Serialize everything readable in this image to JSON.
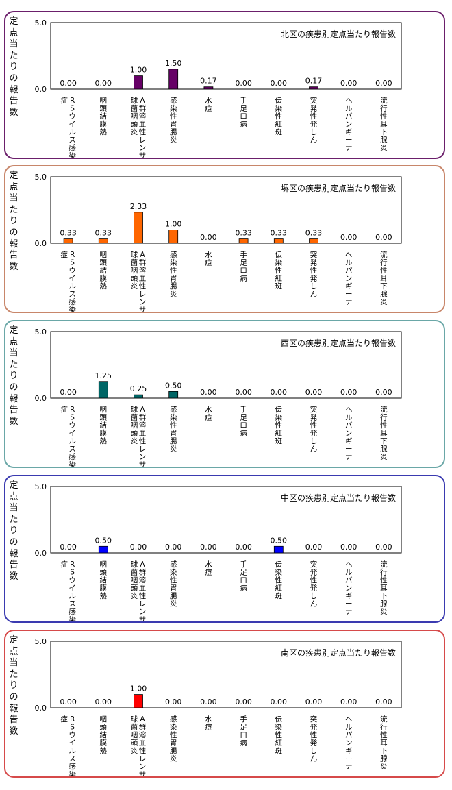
{
  "colors": {
    "panel_borders": [
      "#6b1f6b",
      "#c8866a",
      "#6aa7a7",
      "#3a3ab0",
      "#d64a4a"
    ]
  },
  "chart_data": [
    {
      "type": "bar",
      "title": "北区の疾患別定点当たり報告数",
      "ylabel": "定点当たりの報告数",
      "ylim": [
        0,
        5
      ],
      "yticks": [
        "5.0",
        "0.0"
      ],
      "categories": [
        "RSウイルス感染症",
        "咽頭結膜熱",
        "A群溶血性レンサ球菌咽頭炎",
        "感染性胃腸炎",
        "水痘",
        "手足口病",
        "伝染性紅斑",
        "突発性発しん",
        "ヘルパンギーナ",
        "流行性耳下腺炎"
      ],
      "series": [
        {
          "values": [
            0.0,
            0.0,
            1.0,
            1.5,
            0.17,
            0.0,
            0.0,
            0.17,
            0.0,
            0.0
          ]
        }
      ],
      "value_labels": [
        "0.00",
        "0.00",
        "1.00",
        "1.50",
        "0.17",
        "0.00",
        "0.00",
        "0.17",
        "0.00",
        "0.00"
      ],
      "bar_color": "#660066",
      "grid": false
    },
    {
      "type": "bar",
      "title": "堺区の疾患別定点当たり報告数",
      "ylabel": "定点当たりの報告数",
      "ylim": [
        0,
        5
      ],
      "yticks": [
        "5.0",
        "0.0"
      ],
      "categories": [
        "RSウイルス感染症",
        "咽頭結膜熱",
        "A群溶血性レンサ球菌咽頭炎",
        "感染性胃腸炎",
        "水痘",
        "手足口病",
        "伝染性紅斑",
        "突発性発しん",
        "ヘルパンギーナ",
        "流行性耳下腺炎"
      ],
      "series": [
        {
          "values": [
            0.33,
            0.33,
            2.33,
            1.0,
            0.0,
            0.33,
            0.33,
            0.33,
            0.0,
            0.0
          ]
        }
      ],
      "value_labels": [
        "0.33",
        "0.33",
        "2.33",
        "1.00",
        "0.00",
        "0.33",
        "0.33",
        "0.33",
        "0.00",
        "0.00"
      ],
      "bar_color": "#ff6600",
      "grid": false
    },
    {
      "type": "bar",
      "title": "西区の疾患別定点当たり報告数",
      "ylabel": "定点当たりの報告数",
      "ylim": [
        0,
        5
      ],
      "yticks": [
        "5.0",
        "0.0"
      ],
      "categories": [
        "RSウイルス感染症",
        "咽頭結膜熱",
        "A群溶血性レンサ球菌咽頭炎",
        "感染性胃腸炎",
        "水痘",
        "手足口病",
        "伝染性紅斑",
        "突発性発しん",
        "ヘルパンギーナ",
        "流行性耳下腺炎"
      ],
      "series": [
        {
          "values": [
            0.0,
            1.25,
            0.25,
            0.5,
            0.0,
            0.0,
            0.0,
            0.0,
            0.0,
            0.0
          ]
        }
      ],
      "value_labels": [
        "0.00",
        "1.25",
        "0.25",
        "0.50",
        "0.00",
        "0.00",
        "0.00",
        "0.00",
        "0.00",
        "0.00"
      ],
      "bar_color": "#006666",
      "grid": false
    },
    {
      "type": "bar",
      "title": "中区の疾患別定点当たり報告数",
      "ylabel": "定点当たりの報告数",
      "ylim": [
        0,
        5
      ],
      "yticks": [
        "5.0",
        "0.0"
      ],
      "categories": [
        "RSウイルス感染症",
        "咽頭結膜熱",
        "A群溶血性レンサ球菌咽頭炎",
        "感染性胃腸炎",
        "水痘",
        "手足口病",
        "伝染性紅斑",
        "突発性発しん",
        "ヘルパンギーナ",
        "流行性耳下腺炎"
      ],
      "series": [
        {
          "values": [
            0.0,
            0.5,
            0.0,
            0.0,
            0.0,
            0.0,
            0.5,
            0.0,
            0.0,
            0.0
          ]
        }
      ],
      "value_labels": [
        "0.00",
        "0.50",
        "0.00",
        "0.00",
        "0.00",
        "0.00",
        "0.50",
        "0.00",
        "0.00",
        "0.00"
      ],
      "bar_color": "#0000ff",
      "grid": false
    },
    {
      "type": "bar",
      "title": "南区の疾患別定点当たり報告数",
      "ylabel": "定点当たりの報告数",
      "ylim": [
        0,
        5
      ],
      "yticks": [
        "5.0",
        "0.0"
      ],
      "categories": [
        "RSウイルス感染症",
        "咽頭結膜熱",
        "A群溶血性レンサ球菌咽頭炎",
        "感染性胃腸炎",
        "水痘",
        "手足口病",
        "伝染性紅斑",
        "突発性発しん",
        "ヘルパンギーナ",
        "流行性耳下腺炎"
      ],
      "series": [
        {
          "values": [
            0.0,
            0.0,
            1.0,
            0.0,
            0.0,
            0.0,
            0.0,
            0.0,
            0.0,
            0.0
          ]
        }
      ],
      "value_labels": [
        "0.00",
        "0.00",
        "1.00",
        "0.00",
        "0.00",
        "0.00",
        "0.00",
        "0.00",
        "0.00",
        "0.00"
      ],
      "bar_color": "#ff0000",
      "grid": false
    }
  ]
}
